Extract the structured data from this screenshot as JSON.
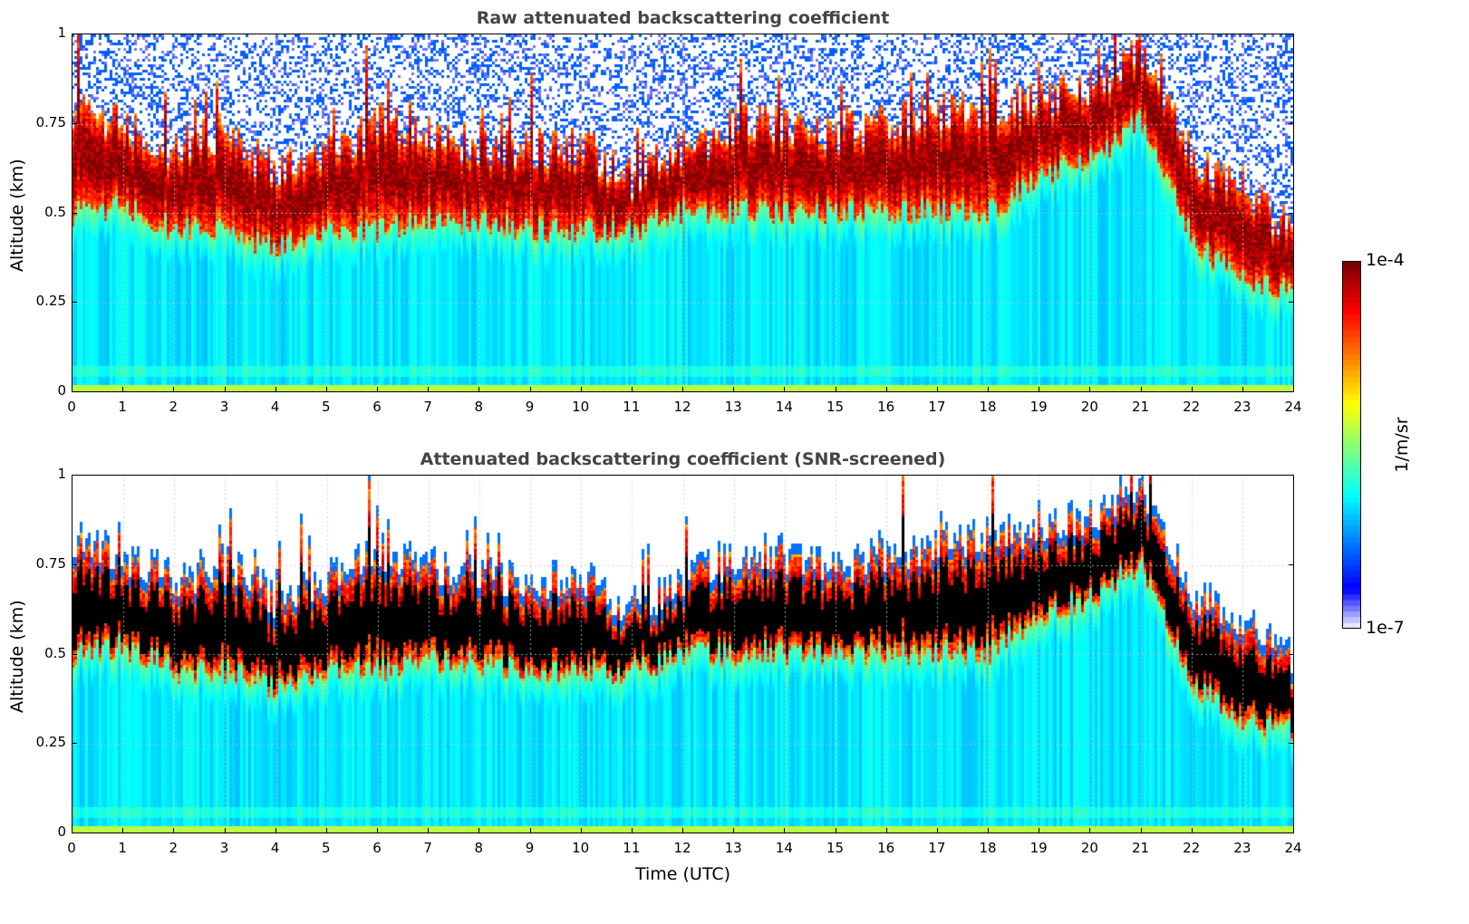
{
  "chart_data": [
    {
      "type": "heatmap",
      "title": "Raw attenuated backscattering coefficient",
      "xlabel": "",
      "ylabel": "Altitude (km)",
      "xlim": [
        0,
        24
      ],
      "ylim": [
        0,
        1
      ],
      "xticks": [
        "0",
        "1",
        "2",
        "3",
        "4",
        "5",
        "6",
        "7",
        "8",
        "9",
        "10",
        "11",
        "12",
        "13",
        "14",
        "15",
        "16",
        "17",
        "18",
        "19",
        "20",
        "21",
        "22",
        "23",
        "24"
      ],
      "yticks": [
        "0",
        "0.25",
        "0.5",
        "0.75",
        "1"
      ],
      "grid": true,
      "screened": false
    },
    {
      "type": "heatmap",
      "title": "Attenuated backscattering coefficient (SNR-screened)",
      "xlabel": "Time (UTC)",
      "ylabel": "Altitude (km)",
      "xlim": [
        0,
        24
      ],
      "ylim": [
        0,
        1
      ],
      "xticks": [
        "0",
        "1",
        "2",
        "3",
        "4",
        "5",
        "6",
        "7",
        "8",
        "9",
        "10",
        "11",
        "12",
        "13",
        "14",
        "15",
        "16",
        "17",
        "18",
        "19",
        "20",
        "21",
        "22",
        "23",
        "24"
      ],
      "yticks": [
        "0",
        "0.25",
        "0.5",
        "0.75",
        "1"
      ],
      "grid": true,
      "screened": true
    }
  ],
  "layer": {
    "hours": [
      0,
      1,
      2,
      3,
      4,
      5,
      6,
      7,
      8,
      9,
      10,
      11,
      12,
      13,
      14,
      15,
      16,
      17,
      18,
      19,
      20,
      21,
      22,
      23,
      24
    ],
    "cloud_base_km": [
      0.5,
      0.52,
      0.45,
      0.45,
      0.4,
      0.45,
      0.45,
      0.48,
      0.47,
      0.45,
      0.45,
      0.45,
      0.5,
      0.5,
      0.5,
      0.5,
      0.5,
      0.5,
      0.5,
      0.6,
      0.65,
      0.75,
      0.42,
      0.3,
      0.28
    ],
    "cloud_top_km": [
      0.8,
      0.75,
      0.68,
      0.72,
      0.62,
      0.68,
      0.75,
      0.72,
      0.68,
      0.68,
      0.68,
      0.6,
      0.68,
      0.75,
      0.75,
      0.72,
      0.75,
      0.78,
      0.8,
      0.82,
      0.85,
      0.95,
      0.65,
      0.55,
      0.45
    ]
  },
  "colorbar": {
    "label": "1/m/sr",
    "max_label": "1e-4",
    "min_label": "1e-7",
    "scale": "log",
    "range": [
      1e-07,
      0.0001
    ],
    "colormap": "jet"
  }
}
